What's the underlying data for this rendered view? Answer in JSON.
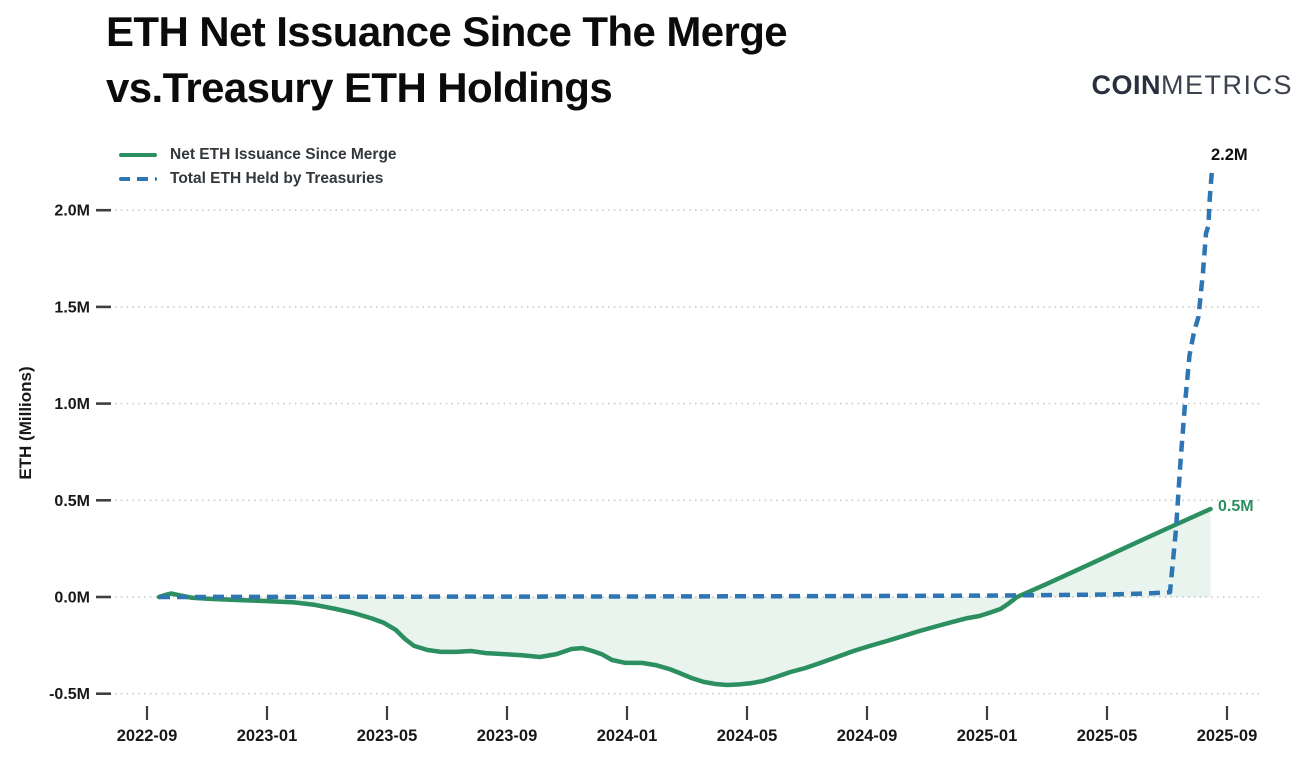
{
  "header": {
    "title_line1": "ETH Net Issuance Since The Merge",
    "title_line2": "vs.Treasury ETH Holdings",
    "logo_bold": "COIN",
    "logo_light": "METRICS"
  },
  "legend": {
    "items": [
      {
        "label": "Net ETH Issuance Since Merge",
        "color": "#2b8f60",
        "style": "solid"
      },
      {
        "label": "Total ETH Held by Treasuries",
        "color": "#2d76b3",
        "style": "dashed"
      }
    ]
  },
  "chart_data": {
    "type": "line",
    "title": "ETH Net Issuance Since The Merge vs.Treasury ETH Holdings",
    "xlabel": "",
    "ylabel": "ETH (Millions)",
    "x_unit": "months since 2022-09",
    "ylim": [
      -0.7,
      2.3
    ],
    "grid": "horizontal-dotted",
    "legend_position": "top-left",
    "colors": {
      "issuance_positive": "#2b8f60",
      "issuance_negative": "#b02a25",
      "treasuries": "#2d76b3",
      "grid": "#c9cbcc",
      "tick": "#3d3f41"
    },
    "y_ticks": [
      {
        "v": 2.0,
        "label": "2.0M"
      },
      {
        "v": 1.5,
        "label": "1.5M"
      },
      {
        "v": 1.0,
        "label": "1.0M"
      },
      {
        "v": 0.5,
        "label": "0.5M"
      },
      {
        "v": 0.0,
        "label": "0.0M"
      },
      {
        "v": -0.5,
        "label": "-0.5M"
      }
    ],
    "x_ticks": [
      {
        "m": 0,
        "label": "2022-09"
      },
      {
        "m": 4,
        "label": "2023-01"
      },
      {
        "m": 8,
        "label": "2023-05"
      },
      {
        "m": 12,
        "label": "2023-09"
      },
      {
        "m": 16,
        "label": "2024-01"
      },
      {
        "m": 20,
        "label": "2024-05"
      },
      {
        "m": 24,
        "label": "2024-09"
      },
      {
        "m": 28,
        "label": "2025-01"
      },
      {
        "m": 32,
        "label": "2025-05"
      },
      {
        "m": 36,
        "label": "2025-09"
      }
    ],
    "series": [
      {
        "name": "Net ETH Issuance Since Merge",
        "style": "solid",
        "split_by_sign": true,
        "fill_baseline": 0,
        "points": [
          [
            0.4,
            0.0
          ],
          [
            0.6,
            0.01
          ],
          [
            0.8,
            0.018
          ],
          [
            1.0,
            0.012
          ],
          [
            1.3,
            0.002
          ],
          [
            1.5,
            -0.004
          ],
          [
            2.1,
            -0.01
          ],
          [
            3.1,
            -0.016
          ],
          [
            4.0,
            -0.021
          ],
          [
            4.9,
            -0.028
          ],
          [
            5.6,
            -0.041
          ],
          [
            6.3,
            -0.062
          ],
          [
            6.9,
            -0.083
          ],
          [
            7.5,
            -0.111
          ],
          [
            7.9,
            -0.134
          ],
          [
            8.3,
            -0.171
          ],
          [
            8.6,
            -0.217
          ],
          [
            8.9,
            -0.253
          ],
          [
            9.35,
            -0.274
          ],
          [
            9.8,
            -0.284
          ],
          [
            10.3,
            -0.284
          ],
          [
            10.8,
            -0.279
          ],
          [
            11.3,
            -0.29
          ],
          [
            11.9,
            -0.295
          ],
          [
            12.5,
            -0.301
          ],
          [
            13.1,
            -0.31
          ],
          [
            13.65,
            -0.295
          ],
          [
            14.15,
            -0.269
          ],
          [
            14.5,
            -0.264
          ],
          [
            14.85,
            -0.279
          ],
          [
            15.15,
            -0.295
          ],
          [
            15.5,
            -0.326
          ],
          [
            15.95,
            -0.341
          ],
          [
            16.5,
            -0.341
          ],
          [
            16.95,
            -0.352
          ],
          [
            17.4,
            -0.372
          ],
          [
            17.75,
            -0.393
          ],
          [
            18.15,
            -0.419
          ],
          [
            18.55,
            -0.439
          ],
          [
            18.95,
            -0.45
          ],
          [
            19.35,
            -0.455
          ],
          [
            19.75,
            -0.452
          ],
          [
            20.15,
            -0.445
          ],
          [
            20.55,
            -0.434
          ],
          [
            20.95,
            -0.414
          ],
          [
            21.45,
            -0.388
          ],
          [
            21.95,
            -0.367
          ],
          [
            22.45,
            -0.341
          ],
          [
            23.0,
            -0.31
          ],
          [
            23.55,
            -0.279
          ],
          [
            24.1,
            -0.253
          ],
          [
            24.65,
            -0.228
          ],
          [
            25.2,
            -0.202
          ],
          [
            25.75,
            -0.176
          ],
          [
            26.35,
            -0.15
          ],
          [
            26.85,
            -0.129
          ],
          [
            27.35,
            -0.109
          ],
          [
            27.75,
            -0.098
          ],
          [
            28.15,
            -0.078
          ],
          [
            28.45,
            -0.062
          ],
          [
            28.7,
            -0.036
          ],
          [
            29.0,
            0.0
          ],
          [
            30.0,
            0.068
          ],
          [
            31.5,
            0.175
          ],
          [
            33.0,
            0.283
          ],
          [
            34.3,
            0.375
          ],
          [
            35.45,
            0.455
          ]
        ]
      },
      {
        "name": "Total ETH Held by Treasuries",
        "style": "dashed",
        "split_by_sign": false,
        "points": [
          [
            0.4,
            0.0
          ],
          [
            6.0,
            0.001
          ],
          [
            12.0,
            0.002
          ],
          [
            18.0,
            0.003
          ],
          [
            24.0,
            0.005
          ],
          [
            28.0,
            0.007
          ],
          [
            30.0,
            0.01
          ],
          [
            32.0,
            0.013
          ],
          [
            33.3,
            0.018
          ],
          [
            34.1,
            0.025
          ],
          [
            34.3,
            0.35
          ],
          [
            34.45,
            0.7
          ],
          [
            34.6,
            1.0
          ],
          [
            34.75,
            1.25
          ],
          [
            34.9,
            1.37
          ],
          [
            35.05,
            1.45
          ],
          [
            35.2,
            1.68
          ],
          [
            35.3,
            1.88
          ],
          [
            35.38,
            1.92
          ],
          [
            35.42,
            2.05
          ],
          [
            35.5,
            2.21
          ]
        ]
      }
    ],
    "annotations": [
      {
        "text": "2.2M",
        "series": "Total ETH Held by Treasuries",
        "value_millions": 2.2,
        "color": "#0f0f0f"
      },
      {
        "text": "0.5M",
        "series": "Net ETH Issuance Since Merge",
        "value_millions": 0.5,
        "color": "#2b8f60"
      }
    ]
  }
}
